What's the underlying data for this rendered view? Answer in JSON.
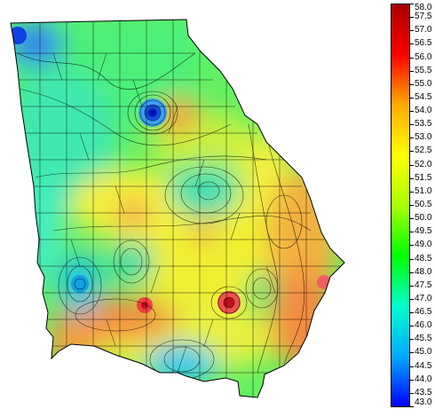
{
  "map": {
    "type": "contour-map",
    "region_shape": "state of Georgia with county boundaries",
    "colorbar": {
      "min": 43.0,
      "max": 58.0,
      "tick_labels": [
        "58.0",
        "57.5",
        "57.0",
        "56.5",
        "56.0",
        "55.5",
        "55.0",
        "54.5",
        "54.0",
        "53.5",
        "53.0",
        "52.5",
        "52.0",
        "51.5",
        "51.0",
        "50.5",
        "50.0",
        "49.5",
        "49.0",
        "48.5",
        "48.0",
        "47.5",
        "47.0",
        "46.5",
        "46.0",
        "45.5",
        "45.0",
        "44.5",
        "44.0",
        "43.5",
        "43.0"
      ],
      "colors": [
        "#0000ff",
        "#00aaff",
        "#00ffcc",
        "#00ff00",
        "#aaff00",
        "#ffff00",
        "#ffaa00",
        "#ff0000",
        "#aa0000"
      ]
    }
  }
}
